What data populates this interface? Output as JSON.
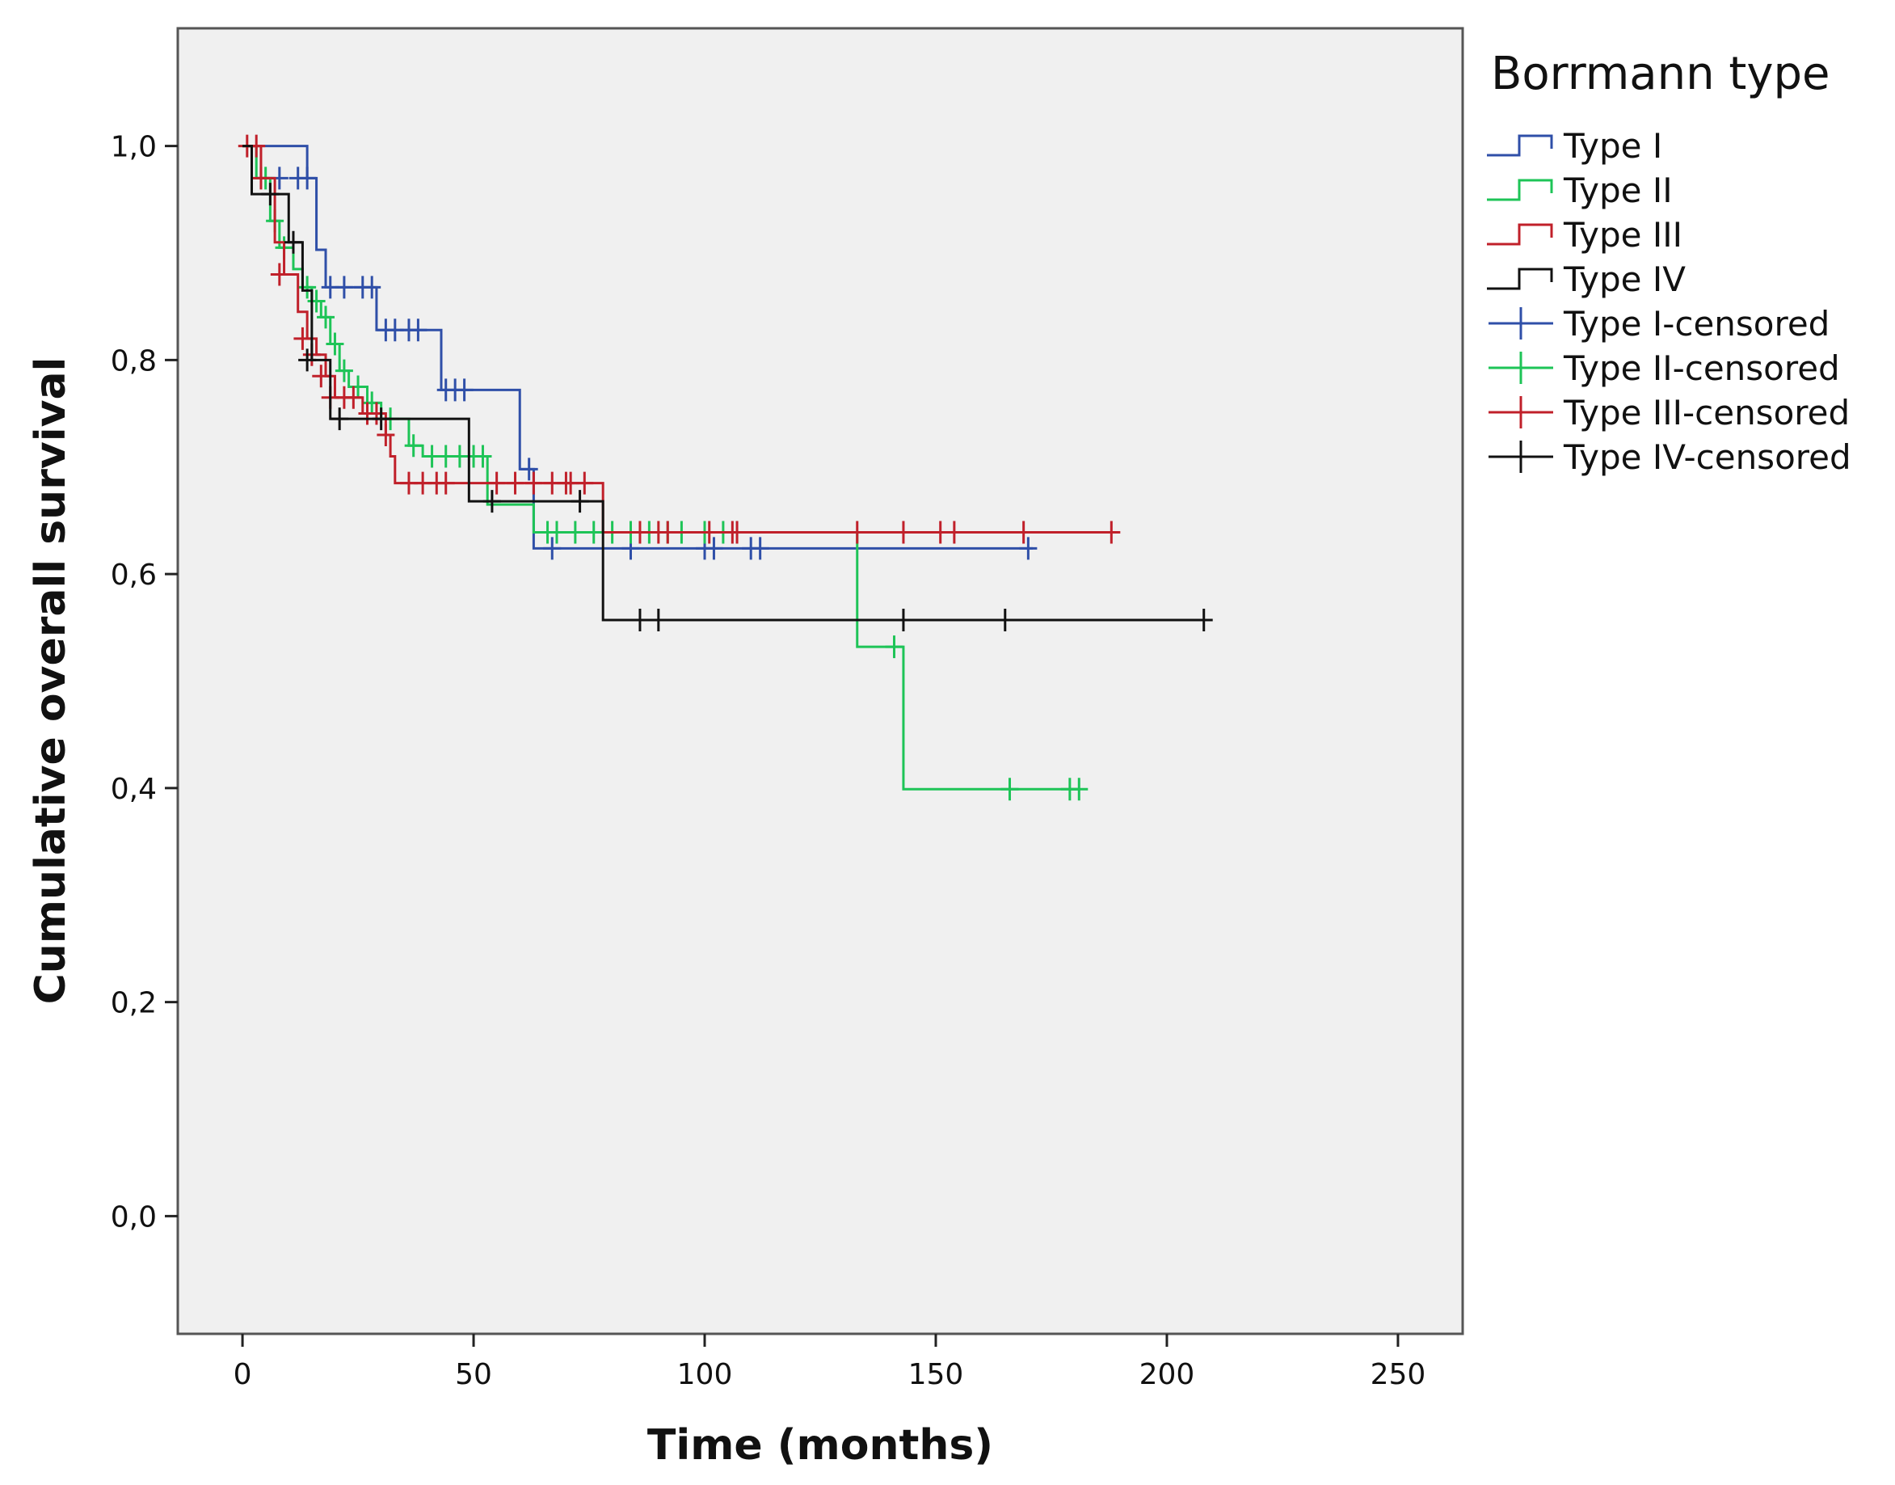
{
  "chart_data": {
    "type": "line",
    "subtype": "kaplan-meier",
    "xlabel": "Time (months)",
    "ylabel": "Cumulative overall survival",
    "xlim": [
      -14,
      264
    ],
    "ylim": [
      -0.11,
      1.11
    ],
    "xticks": [
      0,
      50,
      100,
      150,
      200,
      250
    ],
    "xtick_labels": [
      "0",
      "50",
      "100",
      "150",
      "200",
      "250"
    ],
    "yticks": [
      0.0,
      0.2,
      0.4,
      0.6,
      0.8,
      1.0
    ],
    "ytick_labels": [
      "0,0",
      "0,2",
      "0,4",
      "0,6",
      "0,8",
      "1,0"
    ],
    "grid": false,
    "legend": {
      "title": "Borrmann type",
      "position": "right",
      "entries": [
        {
          "label": "Type I",
          "style": "step",
          "color": "#2f4fa8"
        },
        {
          "label": "Type II",
          "style": "step",
          "color": "#1ec457"
        },
        {
          "label": "Type III",
          "style": "step",
          "color": "#c0202a"
        },
        {
          "label": "Type IV",
          "style": "step",
          "color": "#111111"
        },
        {
          "label": "Type I-censored",
          "style": "cross",
          "color": "#2f4fa8"
        },
        {
          "label": "Type II-censored",
          "style": "cross",
          "color": "#1ec457"
        },
        {
          "label": "Type III-censored",
          "style": "cross",
          "color": "#c0202a"
        },
        {
          "label": "Type IV-censored",
          "style": "cross",
          "color": "#111111"
        }
      ]
    },
    "series": [
      {
        "name": "Type I",
        "color": "#2f4fa8",
        "steps": [
          [
            0,
            1.0
          ],
          [
            14,
            0.97
          ],
          [
            16,
            0.903
          ],
          [
            18,
            0.868
          ],
          [
            29,
            0.828
          ],
          [
            43,
            0.772
          ],
          [
            60,
            0.698
          ],
          [
            63,
            0.624
          ],
          [
            171,
            0.624
          ]
        ],
        "censored": [
          [
            8,
            0.97
          ],
          [
            12,
            0.97
          ],
          [
            14,
            0.97
          ],
          [
            19,
            0.868
          ],
          [
            22,
            0.868
          ],
          [
            26,
            0.868
          ],
          [
            28,
            0.868
          ],
          [
            31,
            0.828
          ],
          [
            33,
            0.828
          ],
          [
            36,
            0.828
          ],
          [
            38,
            0.828
          ],
          [
            44,
            0.772
          ],
          [
            46,
            0.772
          ],
          [
            48,
            0.772
          ],
          [
            62,
            0.698
          ],
          [
            67,
            0.624
          ],
          [
            84,
            0.624
          ],
          [
            100,
            0.624
          ],
          [
            102,
            0.624
          ],
          [
            110,
            0.624
          ],
          [
            112,
            0.624
          ],
          [
            170,
            0.624
          ]
        ]
      },
      {
        "name": "Type II",
        "color": "#1ec457",
        "steps": [
          [
            0,
            1.0
          ],
          [
            3,
            0.97
          ],
          [
            6,
            0.93
          ],
          [
            8,
            0.905
          ],
          [
            11,
            0.885
          ],
          [
            13,
            0.868
          ],
          [
            15,
            0.855
          ],
          [
            17,
            0.84
          ],
          [
            19,
            0.815
          ],
          [
            21,
            0.79
          ],
          [
            23,
            0.775
          ],
          [
            27,
            0.76
          ],
          [
            30,
            0.745
          ],
          [
            36,
            0.72
          ],
          [
            39,
            0.71
          ],
          [
            53,
            0.665
          ],
          [
            63,
            0.639
          ],
          [
            133,
            0.532
          ],
          [
            143,
            0.399
          ],
          [
            181,
            0.399
          ]
        ],
        "censored": [
          [
            5,
            0.97
          ],
          [
            7,
            0.93
          ],
          [
            9,
            0.905
          ],
          [
            14,
            0.868
          ],
          [
            16,
            0.855
          ],
          [
            18,
            0.84
          ],
          [
            20,
            0.815
          ],
          [
            22,
            0.79
          ],
          [
            25,
            0.775
          ],
          [
            28,
            0.76
          ],
          [
            32,
            0.745
          ],
          [
            37,
            0.72
          ],
          [
            41,
            0.71
          ],
          [
            44,
            0.71
          ],
          [
            47,
            0.71
          ],
          [
            50,
            0.71
          ],
          [
            52,
            0.71
          ],
          [
            66,
            0.639
          ],
          [
            68,
            0.639
          ],
          [
            72,
            0.639
          ],
          [
            76,
            0.639
          ],
          [
            80,
            0.639
          ],
          [
            84,
            0.639
          ],
          [
            88,
            0.639
          ],
          [
            92,
            0.639
          ],
          [
            95,
            0.639
          ],
          [
            100,
            0.639
          ],
          [
            104,
            0.639
          ],
          [
            141,
            0.532
          ],
          [
            166,
            0.399
          ],
          [
            179,
            0.399
          ],
          [
            181,
            0.399
          ]
        ]
      },
      {
        "name": "Type III",
        "color": "#c0202a",
        "steps": [
          [
            0,
            1.0
          ],
          [
            4,
            0.97
          ],
          [
            7,
            0.91
          ],
          [
            9,
            0.88
          ],
          [
            12,
            0.845
          ],
          [
            14,
            0.82
          ],
          [
            16,
            0.805
          ],
          [
            18,
            0.785
          ],
          [
            20,
            0.765
          ],
          [
            26,
            0.75
          ],
          [
            31,
            0.73
          ],
          [
            32,
            0.71
          ],
          [
            33,
            0.685
          ],
          [
            78,
            0.639
          ],
          [
            188,
            0.639
          ]
        ],
        "censored": [
          [
            1,
            1.0
          ],
          [
            3,
            1.0
          ],
          [
            4,
            0.97
          ],
          [
            8,
            0.88
          ],
          [
            13,
            0.82
          ],
          [
            15,
            0.805
          ],
          [
            17,
            0.785
          ],
          [
            19,
            0.765
          ],
          [
            22,
            0.765
          ],
          [
            24,
            0.765
          ],
          [
            27,
            0.75
          ],
          [
            29,
            0.75
          ],
          [
            31,
            0.73
          ],
          [
            36,
            0.685
          ],
          [
            39,
            0.685
          ],
          [
            42,
            0.685
          ],
          [
            44,
            0.685
          ],
          [
            55,
            0.685
          ],
          [
            59,
            0.685
          ],
          [
            63,
            0.685
          ],
          [
            67,
            0.685
          ],
          [
            70,
            0.685
          ],
          [
            71,
            0.685
          ],
          [
            74,
            0.685
          ],
          [
            86,
            0.639
          ],
          [
            90,
            0.639
          ],
          [
            92,
            0.639
          ],
          [
            101,
            0.639
          ],
          [
            106,
            0.639
          ],
          [
            107,
            0.639
          ],
          [
            133,
            0.639
          ],
          [
            143,
            0.639
          ],
          [
            151,
            0.639
          ],
          [
            154,
            0.639
          ],
          [
            169,
            0.639
          ],
          [
            188,
            0.639
          ]
        ]
      },
      {
        "name": "Type IV",
        "color": "#111111",
        "steps": [
          [
            0,
            1.0
          ],
          [
            2,
            0.955
          ],
          [
            10,
            0.91
          ],
          [
            13,
            0.865
          ],
          [
            15,
            0.8
          ],
          [
            19,
            0.745
          ],
          [
            49,
            0.668
          ],
          [
            78,
            0.557
          ],
          [
            209,
            0.557
          ]
        ],
        "censored": [
          [
            6,
            0.955
          ],
          [
            11,
            0.91
          ],
          [
            14,
            0.8
          ],
          [
            21,
            0.745
          ],
          [
            30,
            0.745
          ],
          [
            54,
            0.668
          ],
          [
            73,
            0.668
          ],
          [
            86,
            0.557
          ],
          [
            90,
            0.557
          ],
          [
            143,
            0.557
          ],
          [
            165,
            0.557
          ],
          [
            208,
            0.557
          ]
        ]
      }
    ]
  }
}
